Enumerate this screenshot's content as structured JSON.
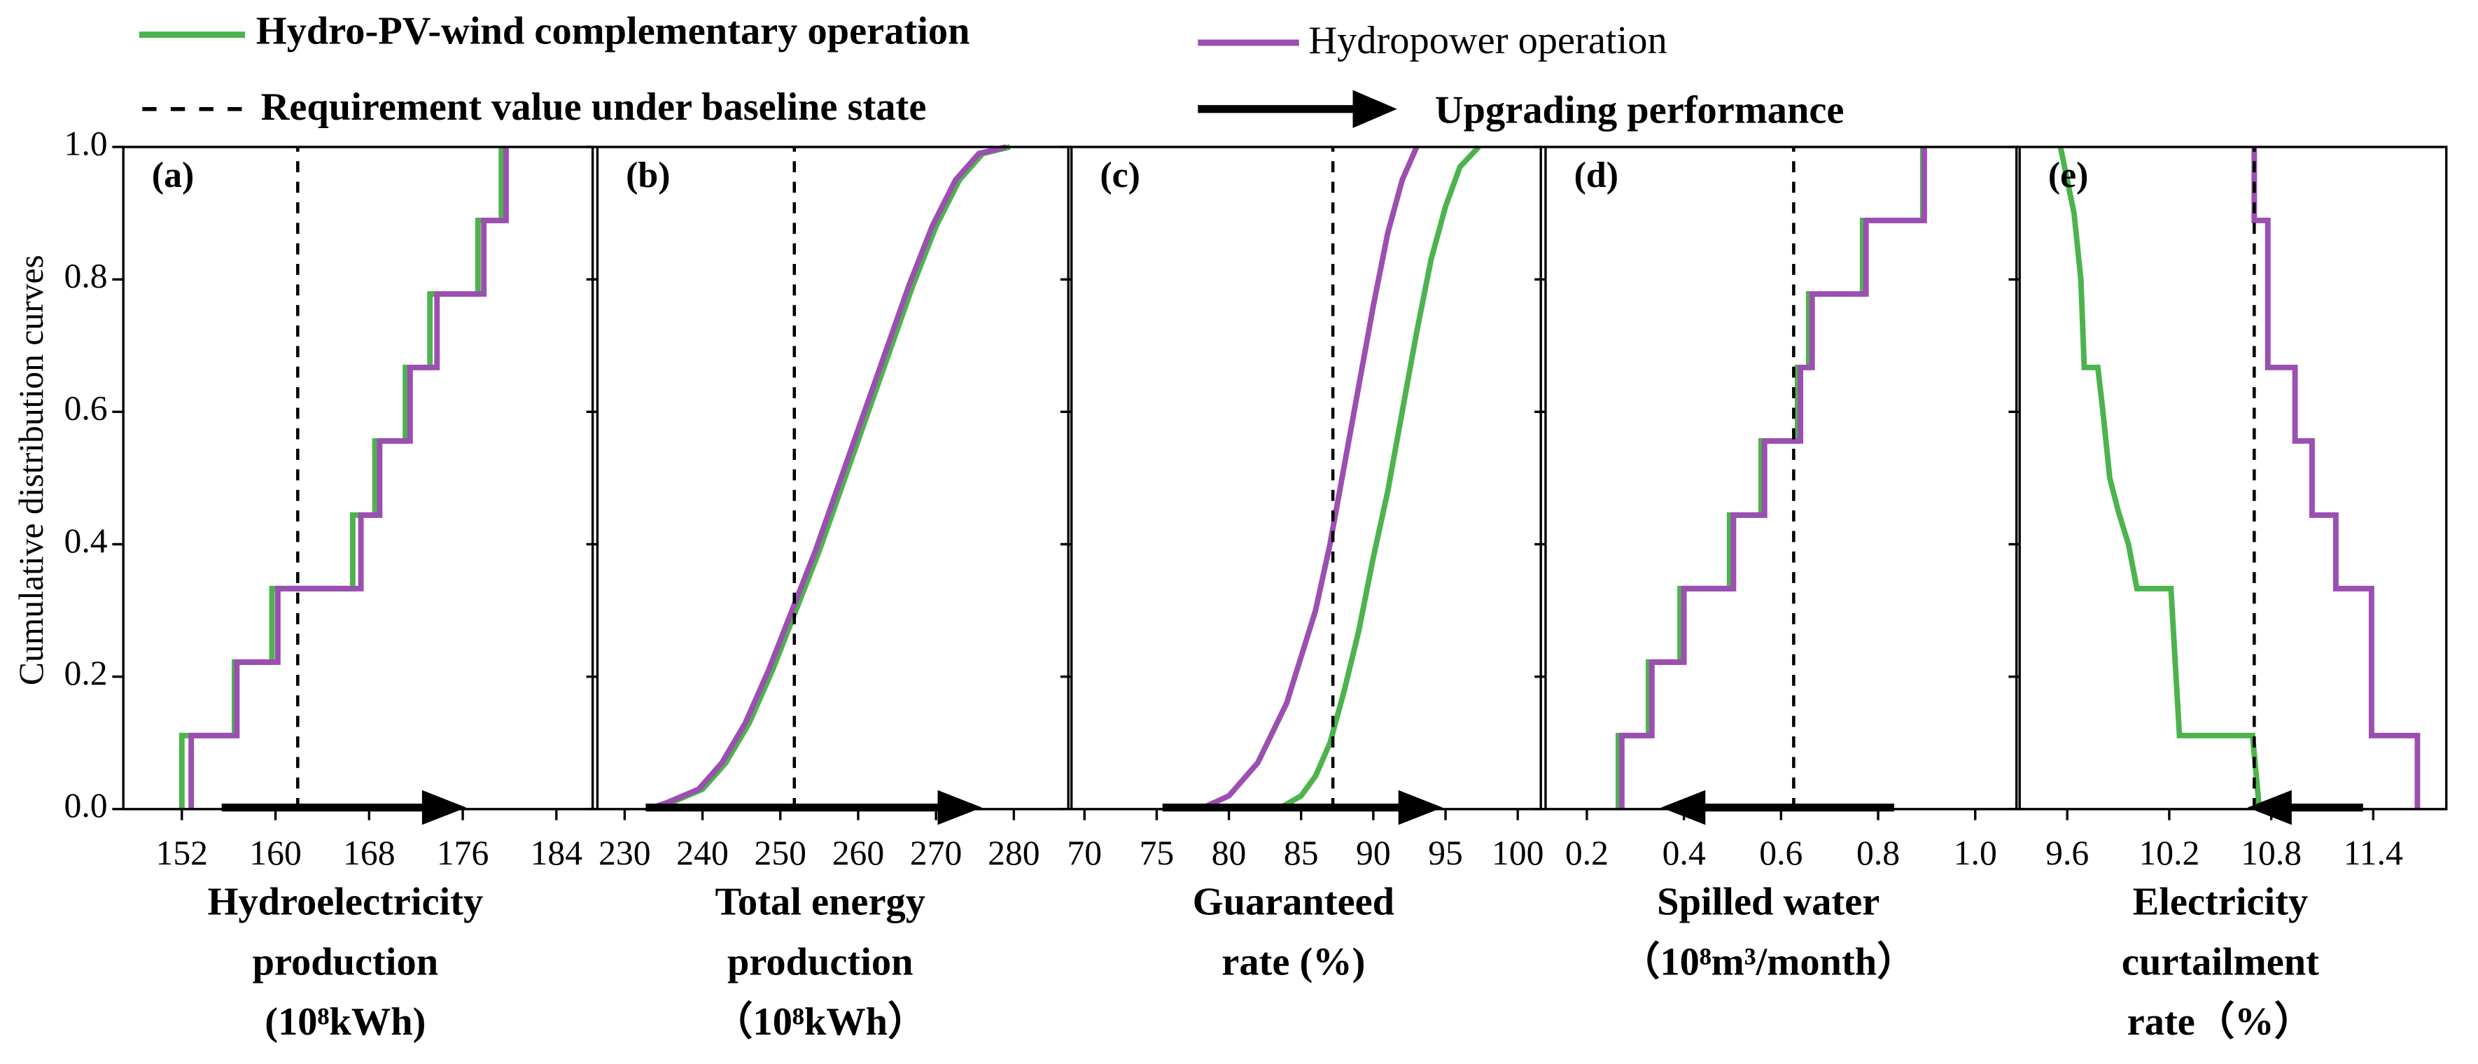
{
  "legend": {
    "series": [
      {
        "name": "Hydro-PV-wind complementary operation",
        "color": "#4db34d"
      },
      {
        "name": "Hydropower operation",
        "color": "#9b4fb0"
      }
    ],
    "baseline": "Requirement value under baseline state",
    "arrow": "Upgrading performance"
  },
  "chart_data": [
    {
      "type": "line",
      "label": "(a)",
      "ylabel": "Cumulative distribution curves",
      "ylim": [
        0,
        1
      ],
      "yticks": [
        {
          "value": 0,
          "label": "0.0"
        },
        0.2,
        0.4,
        0.6,
        0.8,
        {
          "value": 1,
          "label": "1.0"
        }
      ],
      "xlabel": [
        "Hydroelectricity",
        "production",
        "(10⁸kWh)"
      ],
      "xlim": [
        147,
        187.1
      ],
      "xticks": [
        152,
        160,
        168,
        176,
        184
      ],
      "baseline": 161.9,
      "arrow": [
        155.4,
        176.3
      ],
      "series": [
        {
          "x": [
            152,
            152,
            156.5,
            156.5,
            159.7,
            159.7,
            166.6,
            166.6,
            168.5,
            168.5,
            171.1,
            171.1,
            173.2,
            173.2,
            177.3,
            177.3,
            179.3,
            179.3
          ],
          "y": [
            0,
            0.111,
            0.111,
            0.222,
            0.222,
            0.333,
            0.333,
            0.444,
            0.444,
            0.556,
            0.556,
            0.667,
            0.667,
            0.778,
            0.778,
            0.889,
            0.889,
            1
          ]
        },
        {
          "x": [
            152.8,
            152.8,
            156.7,
            156.7,
            160.2,
            160.2,
            167.3,
            167.3,
            168.9,
            168.9,
            171.5,
            171.5,
            173.8,
            173.8,
            177.8,
            177.8,
            179.7,
            179.7
          ],
          "y": [
            0,
            0.111,
            0.111,
            0.222,
            0.222,
            0.333,
            0.333,
            0.444,
            0.444,
            0.556,
            0.556,
            0.667,
            0.667,
            0.778,
            0.778,
            0.889,
            0.889,
            1
          ]
        }
      ]
    },
    {
      "type": "line",
      "label": "(b)",
      "xlabel": [
        "Total energy",
        "production",
        "（10⁸kWh）"
      ],
      "xlim": [
        226.5,
        287
      ],
      "xticks": [
        230,
        240,
        250,
        260,
        270,
        280
      ],
      "baseline": 251.8,
      "arrow": [
        232.7,
        275.9
      ],
      "series": [
        {
          "x": [
            233.5,
            236,
            240,
            243,
            246,
            249,
            252,
            255,
            258,
            261,
            264,
            267,
            270,
            273,
            276,
            279.5
          ],
          "y": [
            0,
            0.01,
            0.03,
            0.07,
            0.13,
            0.21,
            0.3,
            0.39,
            0.49,
            0.59,
            0.69,
            0.79,
            0.88,
            0.95,
            0.99,
            1
          ]
        },
        {
          "x": [
            233,
            235.5,
            239.5,
            242.5,
            245.5,
            248.5,
            251.5,
            254.5,
            257.5,
            260.5,
            263.5,
            266.5,
            269.5,
            272.5,
            275.5,
            279
          ],
          "y": [
            0,
            0.01,
            0.03,
            0.07,
            0.13,
            0.21,
            0.3,
            0.39,
            0.49,
            0.59,
            0.69,
            0.79,
            0.88,
            0.95,
            0.99,
            1
          ]
        }
      ]
    },
    {
      "type": "line",
      "label": "(c)",
      "xlabel": [
        "Guaranteed",
        "rate (%)"
      ],
      "xlim": [
        69.1,
        101.6
      ],
      "xticks": [
        70,
        75,
        80,
        85,
        90,
        95,
        100
      ],
      "baseline": 87.2,
      "arrow": [
        75.4,
        94.8
      ],
      "series": [
        {
          "x": [
            83.4,
            85,
            86,
            87,
            88,
            89,
            90,
            91,
            92,
            93,
            94,
            95,
            96,
            97.3
          ],
          "y": [
            0,
            0.02,
            0.05,
            0.1,
            0.18,
            0.27,
            0.38,
            0.48,
            0.6,
            0.72,
            0.83,
            0.91,
            0.97,
            1
          ]
        },
        {
          "x": [
            78,
            80,
            82,
            84,
            86,
            87,
            88,
            89,
            90,
            91,
            92,
            93
          ],
          "y": [
            0,
            0.02,
            0.07,
            0.16,
            0.3,
            0.4,
            0.52,
            0.64,
            0.76,
            0.87,
            0.95,
            1
          ]
        }
      ]
    },
    {
      "type": "line",
      "label": "(d)",
      "xlabel": [
        "Spilled water",
        "（10⁸m³/month）"
      ],
      "xlim": [
        0.115,
        1.085
      ],
      "xticks": [
        0.2,
        0.4,
        0.6,
        0.8,
        {
          "value": 1,
          "label": "1.0"
        }
      ],
      "baseline": 0.626,
      "arrow": [
        0.833,
        0.353
      ],
      "series": [
        {
          "x": [
            0.265,
            0.265,
            0.327,
            0.327,
            0.392,
            0.392,
            0.494,
            0.494,
            0.559,
            0.559,
            0.634,
            0.634,
            0.657,
            0.657,
            0.768,
            0.768,
            0.892,
            0.892
          ],
          "y": [
            0,
            0.111,
            0.111,
            0.222,
            0.222,
            0.333,
            0.333,
            0.444,
            0.444,
            0.556,
            0.556,
            0.667,
            0.667,
            0.778,
            0.778,
            0.889,
            0.889,
            1
          ]
        },
        {
          "x": [
            0.272,
            0.272,
            0.334,
            0.334,
            0.4,
            0.4,
            0.502,
            0.502,
            0.566,
            0.566,
            0.64,
            0.64,
            0.664,
            0.664,
            0.775,
            0.775,
            0.895,
            0.895
          ],
          "y": [
            0,
            0.111,
            0.111,
            0.222,
            0.222,
            0.333,
            0.333,
            0.444,
            0.444,
            0.556,
            0.556,
            0.667,
            0.667,
            0.778,
            0.778,
            0.889,
            0.889,
            1
          ]
        }
      ]
    },
    {
      "type": "line",
      "label": "(e)",
      "xlabel": [
        "Electricity",
        "curtailment",
        "rate（%）"
      ],
      "xlim": [
        9.32,
        11.83
      ],
      "xticks": [
        9.6,
        10.2,
        10.8,
        11.4
      ],
      "baseline": 10.7,
      "arrow": [
        11.34,
        10.66
      ],
      "series": [
        {
          "x": [
            10.73,
            10.69,
            10.26,
            10.21,
            10.01,
            9.96,
            9.9,
            9.85,
            9.81,
            9.78,
            9.7,
            9.68,
            9.64,
            9.56
          ],
          "y": [
            0,
            0.111,
            0.111,
            0.333,
            0.333,
            0.4,
            0.45,
            0.5,
            0.6,
            0.667,
            0.667,
            0.8,
            0.9,
            1
          ]
        },
        {
          "x": [
            11.66,
            11.66,
            11.39,
            11.39,
            11.18,
            11.18,
            11.04,
            11.04,
            10.94,
            10.94,
            10.78,
            10.78,
            10.7,
            10.7
          ],
          "y": [
            0,
            0.111,
            0.111,
            0.333,
            0.333,
            0.444,
            0.444,
            0.556,
            0.556,
            0.667,
            0.667,
            0.889,
            0.889,
            1
          ]
        }
      ]
    }
  ]
}
